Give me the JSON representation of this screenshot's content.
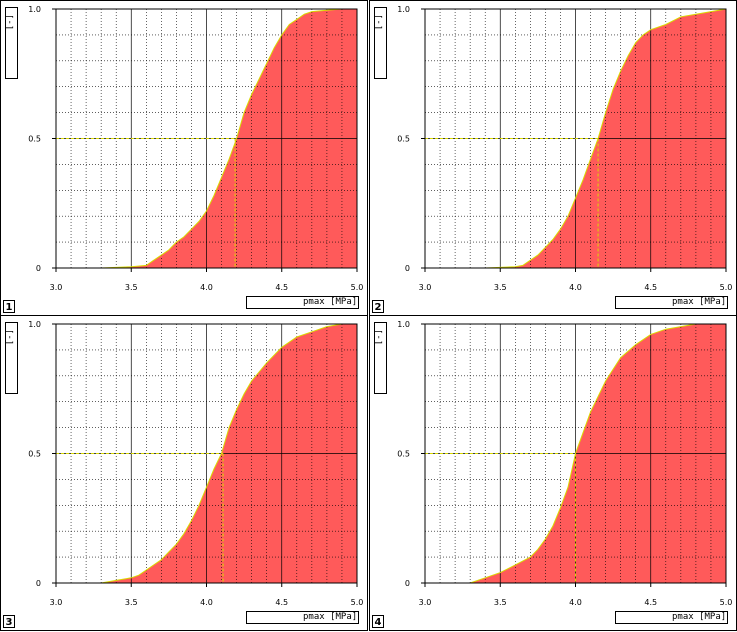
{
  "colors": {
    "fill": "#ff5a5a",
    "curve": "#d9d900",
    "guide": "#d9d900",
    "grid": "#000000",
    "frame": "#000000"
  },
  "chart_data": [
    {
      "type": "area",
      "panel_label": "1",
      "xlabel": "pmax [MPa]",
      "ylabel": "[-]",
      "xlim": [
        3.0,
        5.0
      ],
      "ylim": [
        0,
        1.0
      ],
      "x_ticks": [
        "3.0",
        "3.5",
        "4.0",
        "4.5",
        "5.0"
      ],
      "y_ticks": [
        "0",
        "0.5",
        "1.0"
      ],
      "grid": true,
      "median_x": 4.19,
      "x": [
        3.0,
        3.3,
        3.5,
        3.6,
        3.65,
        3.7,
        3.75,
        3.8,
        3.85,
        3.9,
        3.95,
        4.0,
        4.05,
        4.1,
        4.15,
        4.2,
        4.25,
        4.3,
        4.35,
        4.4,
        4.45,
        4.5,
        4.55,
        4.6,
        4.65,
        4.7,
        4.8,
        4.9,
        5.0
      ],
      "y": [
        0,
        0,
        0.005,
        0.01,
        0.03,
        0.05,
        0.07,
        0.1,
        0.12,
        0.15,
        0.18,
        0.22,
        0.28,
        0.35,
        0.42,
        0.5,
        0.6,
        0.67,
        0.73,
        0.79,
        0.85,
        0.9,
        0.94,
        0.96,
        0.98,
        0.99,
        0.995,
        1.0,
        1.0
      ]
    },
    {
      "type": "area",
      "panel_label": "2",
      "xlabel": "pmax [MPa]",
      "ylabel": "[-]",
      "xlim": [
        3.0,
        5.0
      ],
      "ylim": [
        0,
        1.0
      ],
      "x_ticks": [
        "3.0",
        "3.5",
        "4.0",
        "4.5",
        "5.0"
      ],
      "y_ticks": [
        "0",
        "0.5",
        "1.0"
      ],
      "grid": true,
      "median_x": 4.15,
      "x": [
        3.0,
        3.4,
        3.6,
        3.65,
        3.7,
        3.75,
        3.8,
        3.85,
        3.9,
        3.95,
        4.0,
        4.05,
        4.1,
        4.15,
        4.2,
        4.25,
        4.3,
        4.35,
        4.4,
        4.45,
        4.5,
        4.6,
        4.7,
        4.8,
        4.9,
        5.0
      ],
      "y": [
        0,
        0,
        0.005,
        0.01,
        0.03,
        0.05,
        0.08,
        0.11,
        0.15,
        0.2,
        0.27,
        0.34,
        0.42,
        0.5,
        0.6,
        0.69,
        0.76,
        0.82,
        0.87,
        0.9,
        0.92,
        0.94,
        0.97,
        0.98,
        0.99,
        1.0
      ]
    },
    {
      "type": "area",
      "panel_label": "3",
      "xlabel": "pmax [MPa]",
      "ylabel": "[-]",
      "xlim": [
        3.0,
        5.0
      ],
      "ylim": [
        0,
        1.0
      ],
      "x_ticks": [
        "3.0",
        "3.5",
        "4.0",
        "4.5",
        "5.0"
      ],
      "y_ticks": [
        "0",
        "0.5",
        "1.0"
      ],
      "grid": true,
      "median_x": 4.11,
      "x": [
        3.0,
        3.3,
        3.4,
        3.5,
        3.55,
        3.6,
        3.65,
        3.7,
        3.75,
        3.8,
        3.85,
        3.9,
        3.95,
        4.0,
        4.05,
        4.1,
        4.15,
        4.2,
        4.25,
        4.3,
        4.4,
        4.5,
        4.6,
        4.7,
        4.8,
        4.9,
        5.0
      ],
      "y": [
        0,
        0,
        0.01,
        0.02,
        0.03,
        0.05,
        0.07,
        0.09,
        0.12,
        0.15,
        0.19,
        0.24,
        0.3,
        0.37,
        0.44,
        0.5,
        0.6,
        0.67,
        0.73,
        0.78,
        0.85,
        0.91,
        0.95,
        0.97,
        0.99,
        1.0,
        1.0
      ]
    },
    {
      "type": "area",
      "panel_label": "4",
      "xlabel": "pmax [MPa]",
      "ylabel": "[-]",
      "xlim": [
        3.0,
        5.0
      ],
      "ylim": [
        0,
        1.0
      ],
      "x_ticks": [
        "3.0",
        "3.5",
        "4.0",
        "4.5",
        "5.0"
      ],
      "y_ticks": [
        "0",
        "0.5",
        "1.0"
      ],
      "grid": true,
      "median_x": 4.0,
      "x": [
        3.0,
        3.3,
        3.4,
        3.5,
        3.6,
        3.7,
        3.75,
        3.8,
        3.85,
        3.9,
        3.95,
        4.0,
        4.05,
        4.1,
        4.15,
        4.2,
        4.3,
        4.4,
        4.5,
        4.6,
        4.7,
        4.8,
        5.0
      ],
      "y": [
        0,
        0,
        0.02,
        0.04,
        0.07,
        0.1,
        0.13,
        0.17,
        0.22,
        0.29,
        0.37,
        0.5,
        0.58,
        0.66,
        0.72,
        0.78,
        0.87,
        0.92,
        0.96,
        0.98,
        0.99,
        1.0,
        1.0
      ]
    }
  ]
}
